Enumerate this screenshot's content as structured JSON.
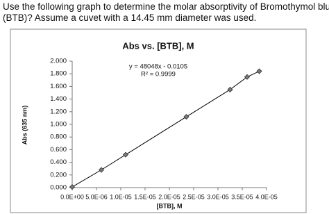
{
  "question_lines": [
    "Use the following graph to determine the molar absorptivity of Bromothymol blue",
    "(BTB)?  Assume a cuvet with a 14.45 mm diameter was used."
  ],
  "chart_data": {
    "type": "scatter",
    "title": "Abs vs. [BTB], M",
    "x_label": "[BTB], M",
    "y_label": "Abs (635 nm)",
    "annotations": [
      "y = 48048x - 0.0105",
      "R² = 0.9999"
    ],
    "x": [
      0,
      6e-06,
      1.1e-05,
      2.35e-05,
      3.25e-05,
      3.6e-05,
      3.85e-05
    ],
    "series": [
      {
        "name": "Abs",
        "color": "#7a7a7a",
        "values": [
          0.01,
          0.28,
          0.52,
          1.12,
          1.55,
          1.75,
          1.84
        ]
      }
    ],
    "xlim": [
      0,
      4e-05
    ],
    "xticks": [
      {
        "value": 0,
        "label": "0.0E+00"
      },
      {
        "value": 5e-06,
        "label": "5.0E-06"
      },
      {
        "value": 1e-05,
        "label": "1.0E-05"
      },
      {
        "value": 1.5e-05,
        "label": "1.5E-05"
      },
      {
        "value": 2e-05,
        "label": "2.0E-05"
      },
      {
        "value": 2.5e-05,
        "label": "2.5E-05"
      },
      {
        "value": 3e-05,
        "label": "3.0E-05"
      },
      {
        "value": 3.5e-05,
        "label": "3.5E-05"
      },
      {
        "value": 4e-05,
        "label": "4.0E-05"
      }
    ],
    "ylim": [
      0,
      2
    ],
    "yticks": [
      {
        "value": 0,
        "label": "0.000"
      },
      {
        "value": 0.2,
        "label": "0.200"
      },
      {
        "value": 0.4,
        "label": "0.400"
      },
      {
        "value": 0.6,
        "label": "0.600"
      },
      {
        "value": 0.8,
        "label": "0.800"
      },
      {
        "value": 1,
        "label": "1.000"
      },
      {
        "value": 1.2,
        "label": "1.200"
      },
      {
        "value": 1.4,
        "label": "1.400"
      },
      {
        "value": 1.6,
        "label": "1.600"
      },
      {
        "value": 1.8,
        "label": "1.800"
      },
      {
        "value": 2,
        "label": "2.000"
      }
    ]
  }
}
